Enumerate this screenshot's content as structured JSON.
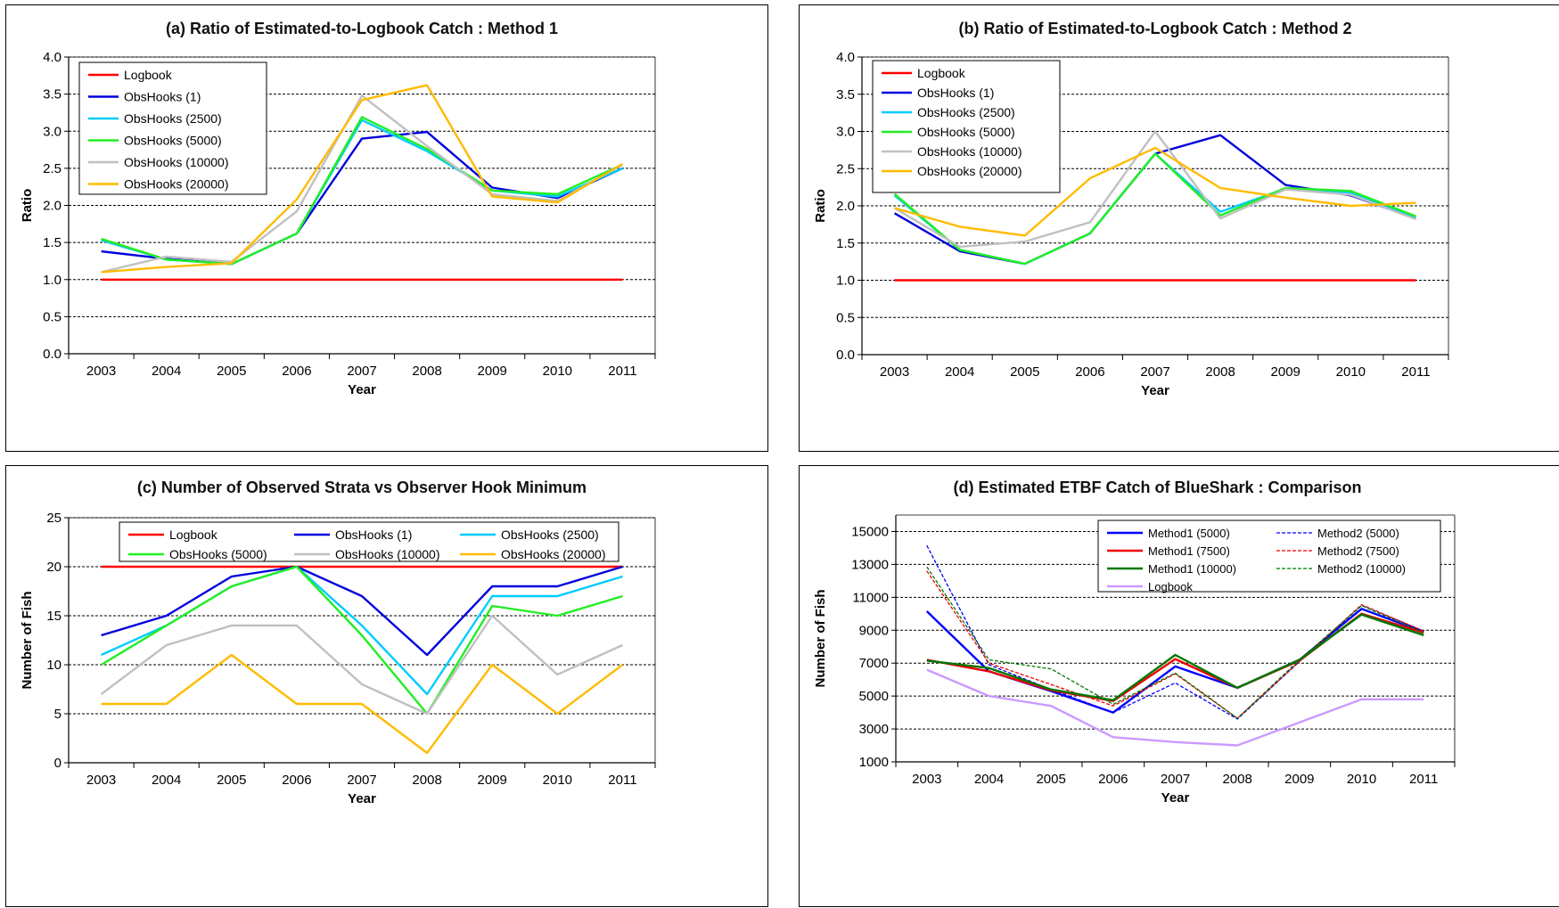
{
  "colors": {
    "Logbook": "#ff0000",
    "ObsHooks (1)": "#0000dd",
    "ObsHooks (2500)": "#00ccff",
    "ObsHooks (5000)": "#22ee22",
    "ObsHooks (10000)": "#c0c0c0",
    "ObsHooks (20000)": "#ffbb00",
    "Method1 (5000)": "#0000ff",
    "Method1 (7500)": "#ee0000",
    "Method1 (10000)": "#007700",
    "Method2 (5000)": "#0000ff",
    "Method2 (7500)": "#ee0000",
    "Method2 (10000)": "#007700",
    "Logbook (d)": "#cc99ff"
  },
  "chart_data": [
    {
      "type": "line",
      "title": "(a) Ratio of Estimated-to-Logbook Catch :  Method 1",
      "xlabel": "Year",
      "ylabel": "Ratio",
      "categories": [
        "2003",
        "2004",
        "2005",
        "2006",
        "2007",
        "2008",
        "2009",
        "2010",
        "2011"
      ],
      "ylim": [
        0,
        4
      ],
      "yticks": [
        "0.0",
        "0.5",
        "1.0",
        "1.5",
        "2.0",
        "2.5",
        "3.0",
        "3.5",
        "4.0"
      ],
      "grid": true,
      "legend_position": "top-left",
      "series": [
        {
          "name": "Logbook",
          "values": [
            1,
            1,
            1,
            1,
            1,
            1,
            1,
            1,
            1
          ]
        },
        {
          "name": "ObsHooks (1)",
          "values": [
            1.38,
            1.28,
            1.21,
            1.62,
            2.9,
            2.99,
            2.24,
            2.1,
            2.5
          ]
        },
        {
          "name": "ObsHooks (2500)",
          "values": [
            1.53,
            1.27,
            1.21,
            1.62,
            3.15,
            2.73,
            2.2,
            2.12,
            2.5
          ]
        },
        {
          "name": "ObsHooks (5000)",
          "values": [
            1.55,
            1.27,
            1.21,
            1.62,
            3.19,
            2.76,
            2.2,
            2.15,
            2.55
          ]
        },
        {
          "name": "ObsHooks (10000)",
          "values": [
            1.1,
            1.31,
            1.24,
            1.92,
            3.48,
            2.8,
            2.15,
            2.06,
            2.55
          ]
        },
        {
          "name": "ObsHooks (20000)",
          "values": [
            1.1,
            1.17,
            1.22,
            2.08,
            3.42,
            3.62,
            2.12,
            2.04,
            2.56
          ]
        }
      ]
    },
    {
      "type": "line",
      "title": "(b) Ratio of Estimated-to-Logbook Catch : Method 2",
      "xlabel": "Year",
      "ylabel": "Ratio",
      "categories": [
        "2003",
        "2004",
        "2005",
        "2006",
        "2007",
        "2008",
        "2009",
        "2010",
        "2011"
      ],
      "ylim": [
        0,
        4
      ],
      "yticks": [
        "0.0",
        "0.5",
        "1.0",
        "1.5",
        "2.0",
        "2.5",
        "3.0",
        "3.5",
        "4.0"
      ],
      "grid": true,
      "legend_position": "top-left",
      "series": [
        {
          "name": "Logbook",
          "values": [
            1,
            1,
            1,
            1,
            1,
            1,
            1,
            1,
            1
          ]
        },
        {
          "name": "ObsHooks (1)",
          "values": [
            1.9,
            1.39,
            1.22,
            1.63,
            2.7,
            2.95,
            2.28,
            2.14,
            1.83
          ]
        },
        {
          "name": "ObsHooks (2500)",
          "values": [
            2.14,
            1.41,
            1.22,
            1.63,
            2.7,
            1.92,
            2.23,
            2.18,
            1.85
          ]
        },
        {
          "name": "ObsHooks (5000)",
          "values": [
            2.16,
            1.41,
            1.22,
            1.63,
            2.7,
            1.87,
            2.24,
            2.2,
            1.86
          ]
        },
        {
          "name": "ObsHooks (10000)",
          "values": [
            1.97,
            1.45,
            1.52,
            1.78,
            3.0,
            1.83,
            2.22,
            2.15,
            1.82
          ]
        },
        {
          "name": "ObsHooks (20000)",
          "values": [
            1.97,
            1.72,
            1.6,
            2.37,
            2.78,
            2.24,
            2.11,
            2.0,
            2.04
          ]
        }
      ]
    },
    {
      "type": "line",
      "title": "(c) Number of Observed Strata vs Observer Hook Minimum",
      "xlabel": "Year",
      "ylabel": "Number of Fish",
      "categories": [
        "2003",
        "2004",
        "2005",
        "2006",
        "2007",
        "2008",
        "2009",
        "2010",
        "2011"
      ],
      "ylim": [
        0,
        25
      ],
      "yticks": [
        "0",
        "5",
        "10",
        "15",
        "20",
        "25"
      ],
      "grid": true,
      "legend_position": "top",
      "series": [
        {
          "name": "Logbook",
          "values": [
            20,
            20,
            20,
            20,
            20,
            20,
            20,
            20,
            20
          ]
        },
        {
          "name": "ObsHooks (1)",
          "values": [
            13,
            15,
            19,
            20,
            17,
            11,
            18,
            18,
            20
          ]
        },
        {
          "name": "ObsHooks (2500)",
          "values": [
            11,
            14,
            18,
            20,
            14,
            7,
            17,
            17,
            19
          ]
        },
        {
          "name": "ObsHooks (5000)",
          "values": [
            10,
            14,
            18,
            20,
            13,
            5,
            16,
            15,
            17
          ]
        },
        {
          "name": "ObsHooks (10000)",
          "values": [
            7,
            12,
            14,
            14,
            8,
            5,
            15,
            9,
            12
          ]
        },
        {
          "name": "ObsHooks (20000)",
          "values": [
            6,
            6,
            11,
            6,
            6,
            1,
            10,
            5,
            10
          ]
        }
      ]
    },
    {
      "type": "line",
      "title": "(d) Estimated ETBF Catch of BlueShark : Comparison",
      "xlabel": "Year",
      "ylabel": "Number of Fish",
      "categories": [
        "2003",
        "2004",
        "2005",
        "2006",
        "2007",
        "2008",
        "2009",
        "2010",
        "2011"
      ],
      "ylim": [
        1000,
        16000
      ],
      "yticks": [
        "1000",
        "3000",
        "5000",
        "7000",
        "9000",
        "11000",
        "13000",
        "15000"
      ],
      "grid": true,
      "legend_position": "top-right",
      "series": [
        {
          "name": "Method1 (5000)",
          "values": [
            10150,
            6500,
            5300,
            4000,
            6800,
            5500,
            7200,
            10300,
            8900
          ]
        },
        {
          "name": "Method2 (5000)",
          "values": [
            14150,
            6900,
            5400,
            4000,
            5800,
            3600,
            7100,
            10500,
            8950
          ]
        },
        {
          "name": "Method1 (7500)",
          "values": [
            7200,
            6500,
            5350,
            4700,
            7250,
            5500,
            7150,
            10000,
            8850
          ]
        },
        {
          "name": "Method2 (7500)",
          "values": [
            12600,
            7000,
            5700,
            4400,
            6350,
            3650,
            7100,
            10550,
            8950
          ]
        },
        {
          "name": "Method1 (10000)",
          "values": [
            7150,
            6700,
            5400,
            4750,
            7500,
            5500,
            7200,
            9950,
            8700
          ]
        },
        {
          "name": "Method2 (10000)",
          "values": [
            12850,
            7200,
            6650,
            4500,
            6400,
            3650,
            7200,
            10500,
            8850
          ]
        },
        {
          "name": "Logbook",
          "values": [
            6600,
            5000,
            4400,
            2500,
            2200,
            2000,
            3400,
            4800,
            4800
          ]
        }
      ]
    }
  ]
}
